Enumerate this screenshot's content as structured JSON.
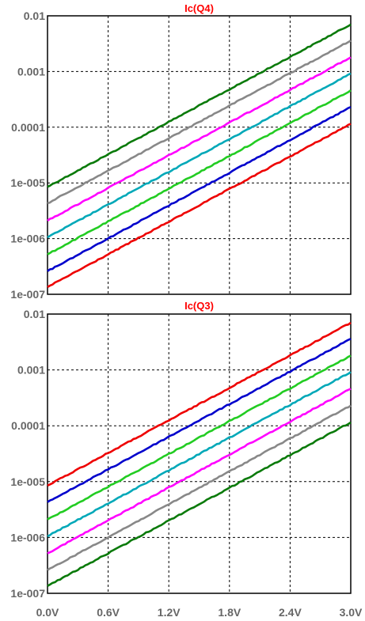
{
  "chart_data": [
    {
      "type": "line",
      "title": "Ic(Q4)",
      "title_color": "#ff0000",
      "yscale": "log",
      "ylim": [
        1e-07,
        0.01
      ],
      "xlim": [
        0,
        3.0
      ],
      "grid": true,
      "y_tick_labels": [
        "0.01",
        "0.001",
        "0.0001",
        "1e-005",
        "1e-006",
        "1e-007"
      ],
      "series": [
        {
          "color": "#0a7a0a",
          "x": [
            0,
            3.0
          ],
          "y": [
            8.5e-06,
            0.007
          ]
        },
        {
          "color": "#888888",
          "x": [
            0,
            3.0
          ],
          "y": [
            4.3e-06,
            0.0036
          ]
        },
        {
          "color": "#ff00ff",
          "x": [
            0,
            3.0
          ],
          "y": [
            2.1e-06,
            0.0018
          ]
        },
        {
          "color": "#00a8b8",
          "x": [
            0,
            3.0
          ],
          "y": [
            1.05e-06,
            0.00092
          ]
        },
        {
          "color": "#22cc22",
          "x": [
            0,
            3.0
          ],
          "y": [
            5.2e-07,
            0.00046
          ]
        },
        {
          "color": "#0000cc",
          "x": [
            0,
            3.0
          ],
          "y": [
            2.6e-07,
            0.00023
          ]
        },
        {
          "color": "#ee0000",
          "x": [
            0,
            3.0
          ],
          "y": [
            1.35e-07,
            0.000115
          ]
        }
      ]
    },
    {
      "type": "line",
      "title": "Ic(Q3)",
      "title_color": "#ff0000",
      "yscale": "log",
      "ylim": [
        1e-07,
        0.01
      ],
      "xlim": [
        0,
        3.0
      ],
      "grid": true,
      "y_tick_labels": [
        "0.01",
        "0.001",
        "0.0001",
        "1e-005",
        "1e-006",
        "1e-007"
      ],
      "x_tick_labels": [
        "0.0V",
        "0.6V",
        "1.2V",
        "1.8V",
        "2.4V",
        "3.0V"
      ],
      "series": [
        {
          "color": "#ee0000",
          "x": [
            0,
            3.0
          ],
          "y": [
            8.5e-06,
            0.007
          ]
        },
        {
          "color": "#0000cc",
          "x": [
            0,
            3.0
          ],
          "y": [
            4.3e-06,
            0.0036
          ]
        },
        {
          "color": "#22cc22",
          "x": [
            0,
            3.0
          ],
          "y": [
            2.1e-06,
            0.0018
          ]
        },
        {
          "color": "#00a8b8",
          "x": [
            0,
            3.0
          ],
          "y": [
            1.05e-06,
            0.00092
          ]
        },
        {
          "color": "#ff00ff",
          "x": [
            0,
            3.0
          ],
          "y": [
            5.2e-07,
            0.00046
          ]
        },
        {
          "color": "#888888",
          "x": [
            0,
            3.0
          ],
          "y": [
            2.6e-07,
            0.00023
          ]
        },
        {
          "color": "#0a7a0a",
          "x": [
            0,
            3.0
          ],
          "y": [
            1.35e-07,
            0.000115
          ]
        }
      ]
    }
  ]
}
